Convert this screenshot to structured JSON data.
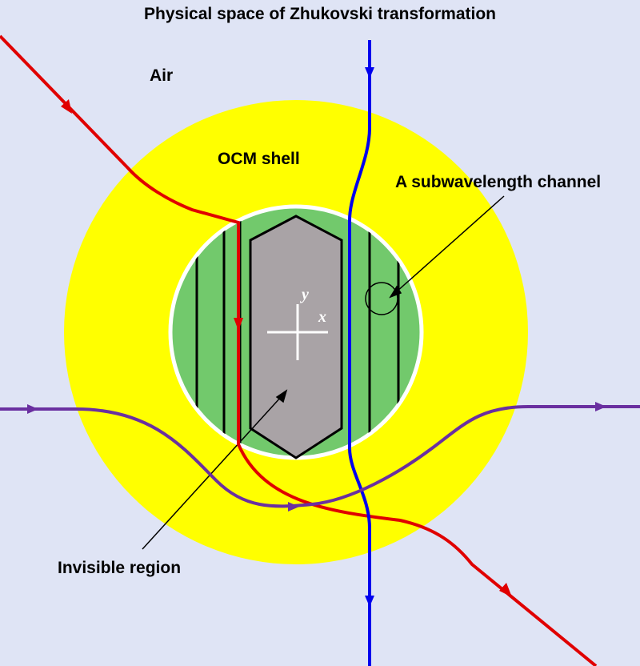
{
  "title": "Physical space of Zhukovski transformation",
  "labels": {
    "air": "Air",
    "shell": "OCM shell",
    "channel": "A subwavelength channel",
    "invisible": "Invisible region"
  },
  "axes": {
    "x": "x",
    "y": "y"
  },
  "colors": {
    "background": "#dfe4f5",
    "shell": "#ffff00",
    "core": "#72c96c",
    "invisible_region": "#a9a3a6",
    "ray_red": "#e00000",
    "ray_blue": "#0000ee",
    "ray_purple": "#6a2fa0"
  }
}
